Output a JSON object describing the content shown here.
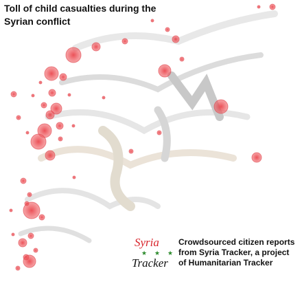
{
  "header": {
    "title_lines": [
      "Toll of child casualties during the",
      "Syrian conflict"
    ]
  },
  "logo": {
    "line1": "Syria",
    "line2": "Tracker"
  },
  "caption": {
    "lines": [
      "Crowdsourced citizen reports",
      "from Syria Tracker, a project",
      "of Humanitarian Tracker"
    ]
  }
}
